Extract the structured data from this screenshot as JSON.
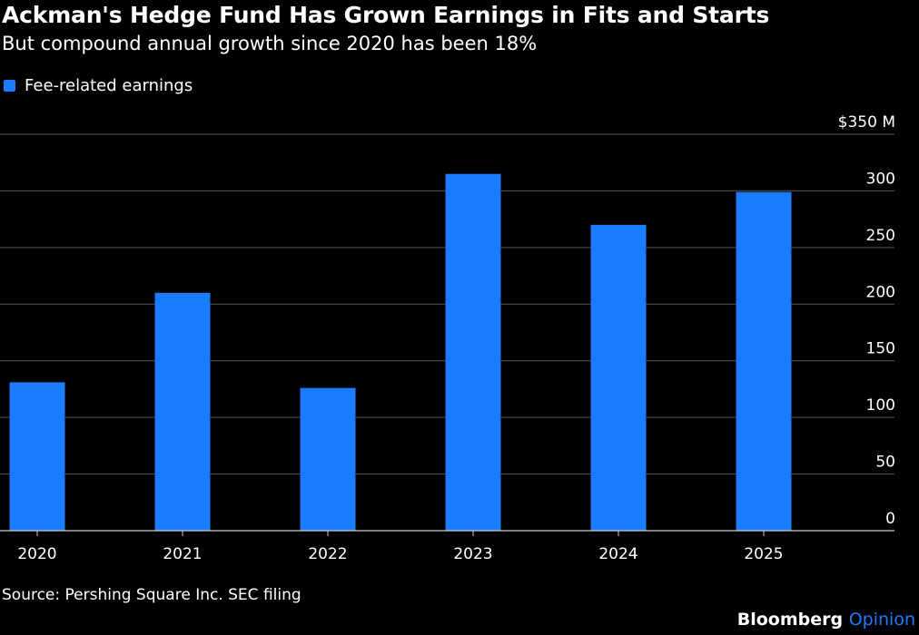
{
  "title": "Ackman's Hedge Fund Has Grown Earnings in Fits and Starts",
  "subtitle": "But compound annual growth since 2020 has been 18%",
  "source": "Source: Pershing Square Inc. SEC filing",
  "brand": {
    "name": "Bloomberg",
    "suffix": "Opinion"
  },
  "colors": {
    "bar": "#1a7cff",
    "grid": "#555555",
    "background": "#000000",
    "brand_accent": "#1a7cff"
  },
  "chart_data": {
    "type": "bar",
    "categories": [
      "2020",
      "2021",
      "2022",
      "2023",
      "2024",
      "2025"
    ],
    "series": [
      {
        "name": "Fee-related earnings",
        "values": [
          131,
          210,
          126,
          315,
          270,
          299
        ]
      }
    ],
    "title": "Ackman's Hedge Fund Has Grown Earnings in Fits and Starts",
    "subtitle": "But compound annual growth since 2020 has been 18%",
    "ylim": [
      0,
      350
    ],
    "yticks": [
      0,
      50,
      100,
      150,
      200,
      250,
      300,
      350
    ],
    "ytick_labels": [
      "0",
      "50",
      "100",
      "150",
      "200",
      "250",
      "300",
      "$350 M"
    ],
    "y_axis_side": "right",
    "grid": true,
    "legend": "top-left"
  }
}
